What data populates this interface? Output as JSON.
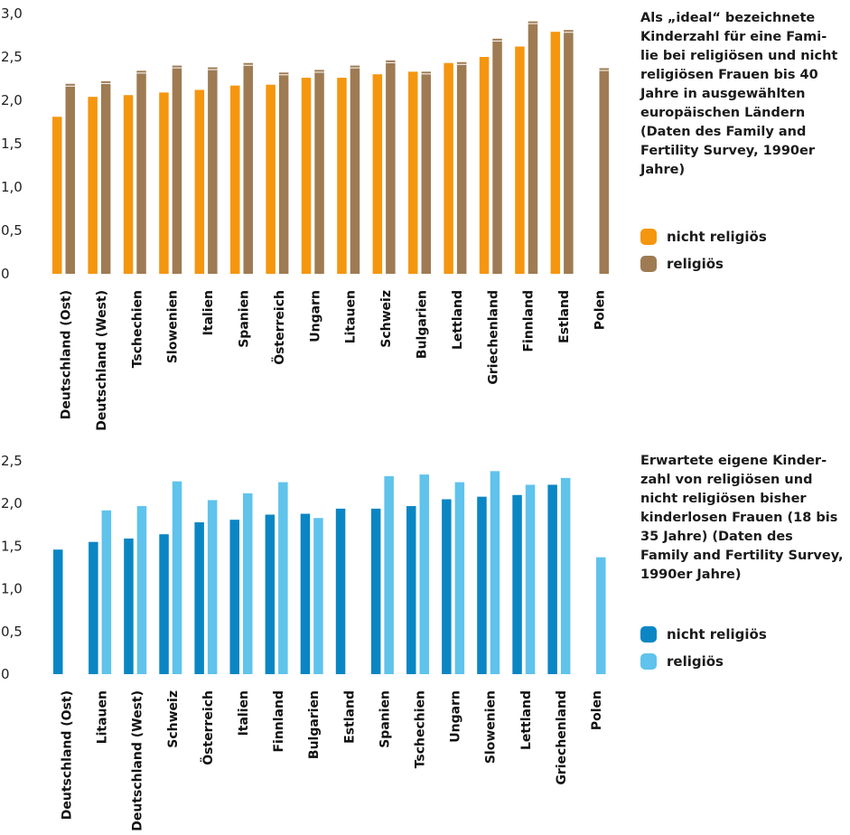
{
  "chart_data": [
    {
      "type": "bar",
      "title": "Als „ideal“ bezeichnete Kinderzahl für eine Familie bei religiösen und nicht religiösen Frauen bis 40 Jahre in ausgewählten europäischen Ländern (Daten des Family and Fertility Survey, 1990er Jahre)",
      "categories": [
        "Deutschland (Ost)",
        "Deutschland (West)",
        "Tschechien",
        "Slowenien",
        "Italien",
        "Spanien",
        "Österreich",
        "Ungarn",
        "Litauen",
        "Schweiz",
        "Bulgarien",
        "Lettland",
        "Griechenland",
        "Finnland",
        "Estland",
        "Polen"
      ],
      "series": [
        {
          "name": "nicht religiös",
          "color": "#f5960f",
          "values": [
            1.81,
            2.04,
            2.06,
            2.09,
            2.12,
            2.17,
            2.18,
            2.26,
            2.26,
            2.3,
            2.33,
            2.43,
            2.5,
            2.62,
            2.79,
            null
          ]
        },
        {
          "name": "religiös",
          "color": "#9e7b53",
          "values": [
            2.19,
            2.22,
            2.34,
            2.4,
            2.38,
            2.43,
            2.32,
            2.35,
            2.4,
            2.46,
            2.33,
            2.44,
            2.71,
            2.91,
            2.81,
            2.37
          ]
        }
      ],
      "yticks": [
        "0",
        "0,5",
        "1,0",
        "1,5",
        "2,0",
        "2,5",
        "3,0"
      ],
      "ylim": [
        0,
        3.0
      ],
      "legend": "right"
    },
    {
      "type": "bar",
      "title": "Erwartete eigene Kinderzahl von religiösen und nicht religiösen bisher kinderlosen Frauen (18 bis 35 Jahre) (Daten des Family and Fertility Survey, 1990er Jahre)",
      "categories": [
        "Deutschland (Ost)",
        "Litauen",
        "Deutschland (West)",
        "Schweiz",
        "Österreich",
        "Italien",
        "Finnland",
        "Bulgarien",
        "Estland",
        "Spanien",
        "Tschechien",
        "Ungarn",
        "Slowenien",
        "Lettland",
        "Griechenland",
        "Polen"
      ],
      "series": [
        {
          "name": "nicht religiös",
          "color": "#0a86c4",
          "values": [
            1.46,
            1.55,
            1.59,
            1.64,
            1.78,
            1.81,
            1.87,
            1.88,
            1.94,
            1.94,
            1.97,
            2.05,
            2.08,
            2.1,
            2.22,
            null
          ]
        },
        {
          "name": "religiös",
          "color": "#5fc3ec",
          "values": [
            null,
            1.92,
            1.97,
            2.26,
            2.04,
            2.12,
            2.25,
            1.83,
            null,
            2.32,
            2.34,
            2.25,
            2.38,
            2.22,
            2.3,
            1.37
          ]
        }
      ],
      "yticks": [
        "0",
        "0,5",
        "1,0",
        "1,5",
        "2,0",
        "2,5"
      ],
      "ylim": [
        0,
        2.5
      ],
      "legend": "right"
    }
  ],
  "texts": {
    "top_title": "Als „ideal“ bezeichnete Kinderzahl für eine Fami-lie bei religiösen und nicht religiösen Frauen bis 40 Jahre in ausgewählten europäischen Ländern (Daten des Family and Fertility Survey, 1990er Jahre)",
    "bottom_title": "Erwartete eigene Kinder-zahl von religiösen und nicht religiösen bisher kinderlosen Frauen (18 bis 35 Jahre) (Daten des Family and Fertility Survey, 1990er Jahre)",
    "legend_nonrel": "nicht religiös",
    "legend_rel": "religiös"
  },
  "colors": {
    "orange": "#f5960f",
    "brown": "#9e7b53",
    "blue": "#0a86c4",
    "lightblue": "#5fc3ec"
  }
}
